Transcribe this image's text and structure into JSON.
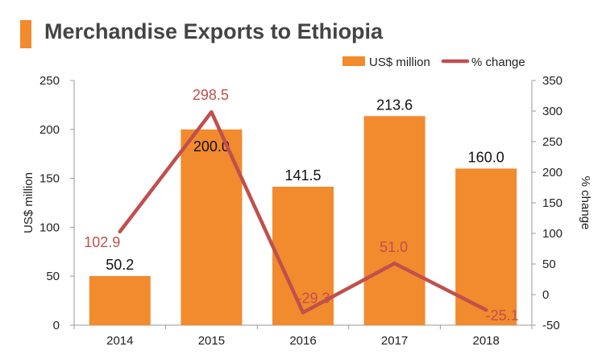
{
  "title": "Merchandise Exports to Ethiopia",
  "chart_data": {
    "type": "bar",
    "title": "Merchandise Exports to Ethiopia",
    "categories": [
      "2014",
      "2015",
      "2016",
      "2017",
      "2018"
    ],
    "series": [
      {
        "name": "US$ million",
        "type": "bar",
        "axis": "left",
        "values": [
          50.2,
          200.0,
          141.5,
          213.6,
          160.0
        ],
        "labels": [
          "50.2",
          "200.0",
          "141.5",
          "213.6",
          "160.0"
        ]
      },
      {
        "name": "% change",
        "type": "line",
        "axis": "right",
        "values": [
          102.9,
          298.5,
          -29.3,
          51.0,
          -25.1
        ],
        "labels": [
          "102.9",
          "298.5",
          "-29.3",
          "51.0",
          "-25.1"
        ]
      }
    ],
    "ylabel": "US$ million",
    "ylabel_right": "% change",
    "ylim": [
      0,
      250
    ],
    "ylim_right": [
      -50,
      350
    ],
    "yticks": [
      "0",
      "50",
      "100",
      "150",
      "200",
      "250"
    ],
    "yticks_right": [
      "-50",
      "0",
      "50",
      "100",
      "150",
      "200",
      "250",
      "300",
      "350"
    ],
    "legend_position": "top-right",
    "grid": false,
    "colors": {
      "bar": "#f28a2e",
      "line": "#c0504d",
      "line_label": "#c0504d",
      "title_accent": "#f28a2e"
    }
  }
}
